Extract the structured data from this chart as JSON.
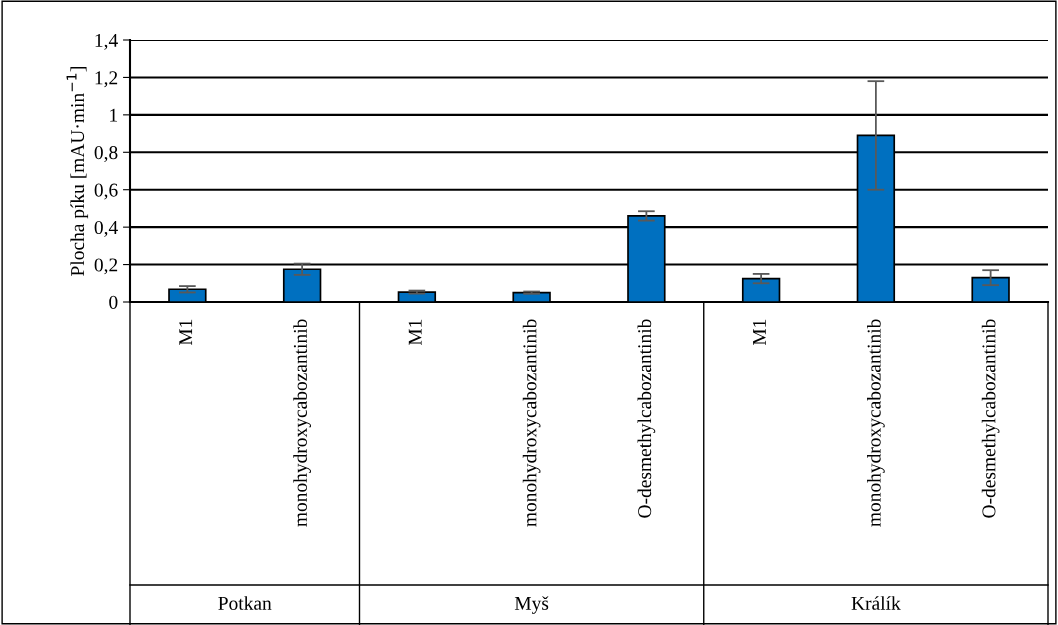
{
  "chart_data": {
    "type": "bar",
    "ylabel": "Plocha píku [mAU·min$^{−1}$]",
    "categories": [
      "M1",
      "monohydroxycabozantinib",
      "M1",
      "monohydroxycabozantinib",
      "O-desmethylcabozantinib",
      "M1",
      "monohydroxycabozantinib",
      "O-desmethylcabozantinib"
    ],
    "values": [
      0.068,
      0.175,
      0.053,
      0.05,
      0.46,
      0.125,
      0.89,
      0.13
    ],
    "errors": [
      0.017,
      0.03,
      0.008,
      0.006,
      0.025,
      0.025,
      0.29,
      0.04
    ],
    "color": "#0070c0",
    "annotations": [
      "Potkan",
      "Myš",
      "Králík"
    ],
    "ylim": [
      0,
      1.4
    ],
    "yticks": [
      0,
      {
        "value": 0.2,
        "label": "0,2"
      },
      {
        "value": 0.4,
        "label": "0,4"
      },
      {
        "value": 0.6,
        "label": "0,6"
      },
      {
        "value": 0.8,
        "label": "0,8"
      },
      1,
      {
        "value": 1.2,
        "label": "1,2"
      },
      {
        "value": 1.4,
        "label": "1,4"
      }
    ],
    "grid": "y"
  }
}
